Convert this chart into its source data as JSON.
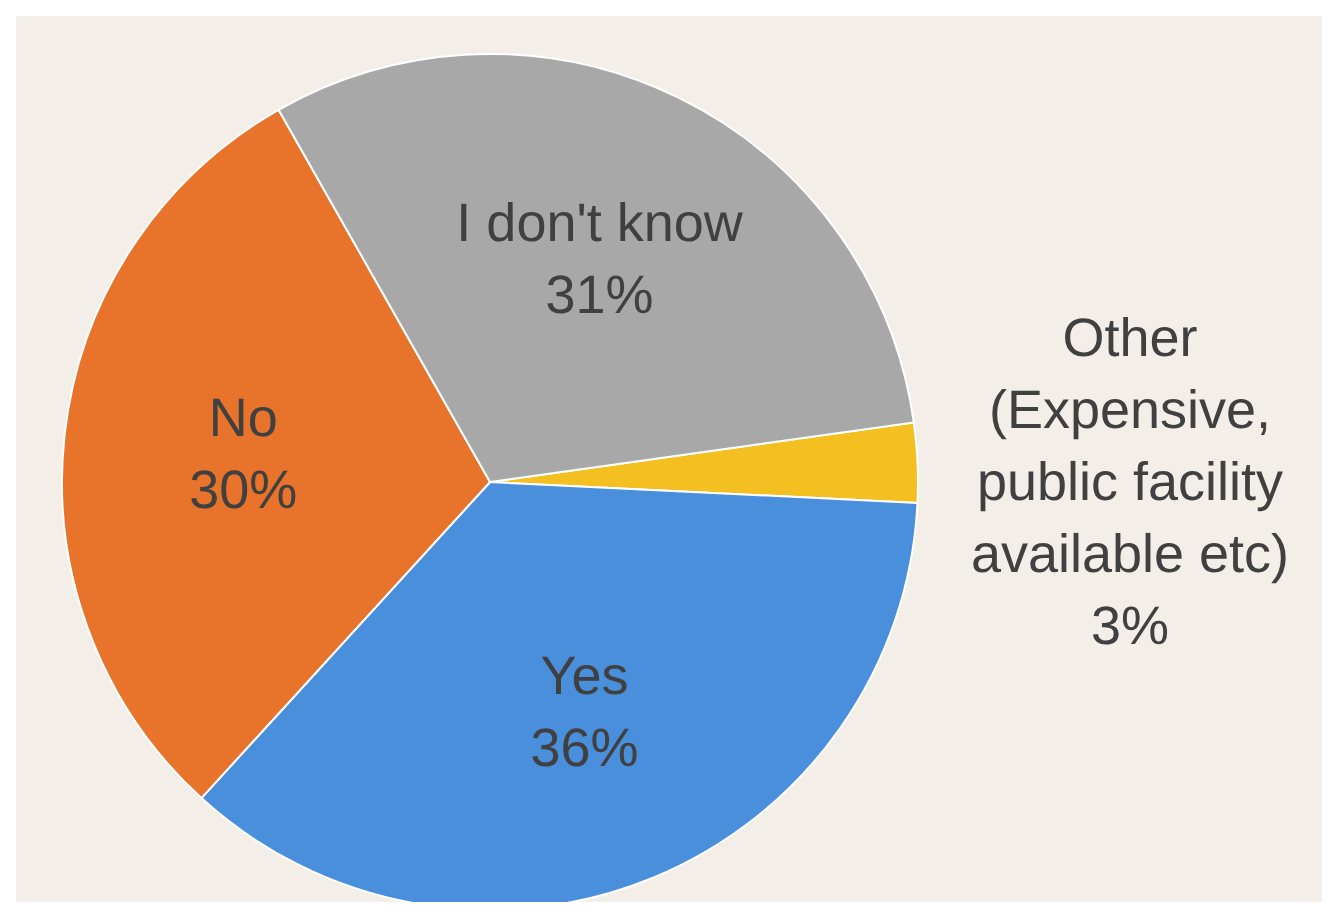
{
  "chart_data": {
    "type": "pie",
    "categories": [
      "Other (Expensive, public facility available etc)",
      "Yes",
      "No",
      "I don't know"
    ],
    "values": [
      3,
      36,
      30,
      31
    ],
    "colors": [
      "#f4c021",
      "#4a8fdc",
      "#e8732a",
      "#a8a8a8"
    ],
    "value_labels": [
      "3%",
      "36%",
      "30%",
      "31%"
    ],
    "legend": false
  }
}
